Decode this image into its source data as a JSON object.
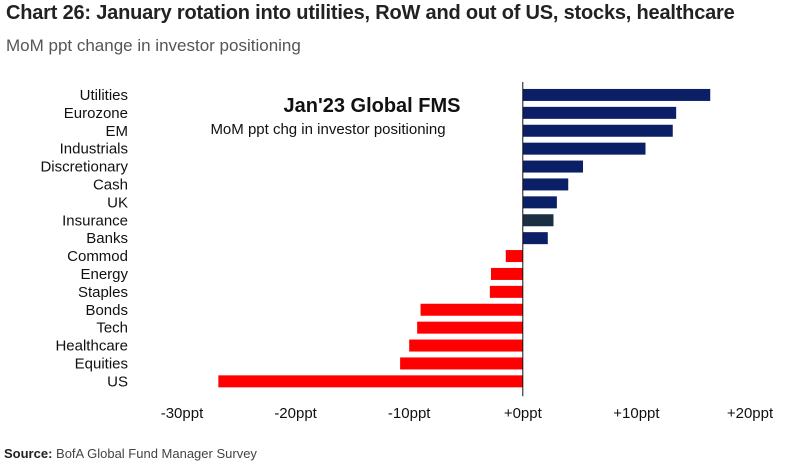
{
  "header": {
    "title": "Chart 26: January rotation into utilities, RoW and out of US, stocks, healthcare",
    "subtitle": "MoM ppt change in investor positioning"
  },
  "source": {
    "label": "Source:",
    "text": "BofA Global Fund Manager Survey"
  },
  "colors": {
    "positive": "#0b1f66",
    "positive_dark": "#1a2e44",
    "negative": "#ff0000",
    "axis": "#111111"
  },
  "chart_data": {
    "type": "bar",
    "orientation": "horizontal",
    "title": "Chart 26: January rotation into utilities, RoW and out of US, stocks, healthcare",
    "subtitle": "MoM ppt change in investor positioning",
    "annotation_title": "Jan'23 Global FMS",
    "annotation_subtitle": "MoM ppt chg in investor positioning",
    "categories": [
      "Utilities",
      "Eurozone",
      "EM",
      "Industrials",
      "Discretionary",
      "Cash",
      "UK",
      "Insurance",
      "Banks",
      "Commod",
      "Energy",
      "Staples",
      "Bonds",
      "Tech",
      "Healthcare",
      "Equities",
      "US"
    ],
    "values": [
      16.5,
      13.5,
      13.2,
      10.8,
      5.3,
      4.0,
      3.0,
      2.7,
      2.2,
      -1.5,
      -2.8,
      -2.9,
      -9.0,
      -9.3,
      -10.0,
      -10.8,
      -26.8
    ],
    "xlim": [
      -30,
      20
    ],
    "ticks": [
      -30,
      -20,
      -10,
      0,
      10,
      20
    ],
    "tick_labels": [
      "-30ppt",
      "-20ppt",
      "-10ppt",
      "+0ppt",
      "+10ppt",
      "+20ppt"
    ],
    "xlabel": "",
    "ylabel": "",
    "grid": false
  }
}
